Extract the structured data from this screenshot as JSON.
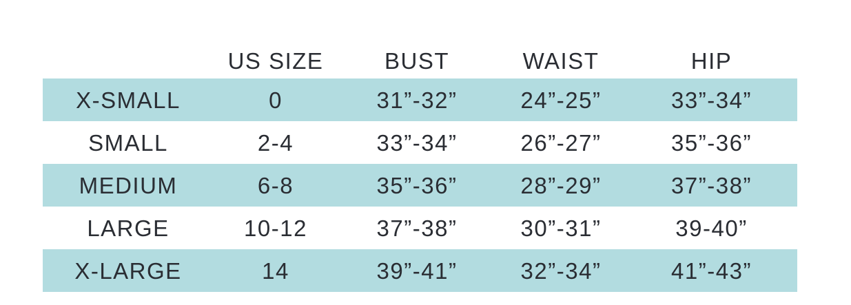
{
  "colors": {
    "row_highlight": "#b2dce0",
    "text": "#2a2d33",
    "background": "#ffffff"
  },
  "chart_data": {
    "type": "table",
    "title": "",
    "columns": [
      "",
      "US SIZE",
      "BUST",
      "WAIST",
      "HIP"
    ],
    "rows": [
      {
        "highlighted": true,
        "cells": [
          "X-SMALL",
          "0",
          "31”-32”",
          "24”-25”",
          "33”-34”"
        ]
      },
      {
        "highlighted": false,
        "cells": [
          "SMALL",
          "2-4",
          "33”-34”",
          "26”-27”",
          "35”-36”"
        ]
      },
      {
        "highlighted": true,
        "cells": [
          "MEDIUM",
          "6-8",
          "35”-36”",
          "28”-29”",
          "37”-38”"
        ]
      },
      {
        "highlighted": false,
        "cells": [
          "LARGE",
          "10-12",
          "37”-38”",
          "30”-31”",
          "39-40”"
        ]
      },
      {
        "highlighted": true,
        "cells": [
          "X-LARGE",
          "14",
          "39”-41”",
          "32”-34”",
          "41”-43”"
        ]
      }
    ]
  }
}
